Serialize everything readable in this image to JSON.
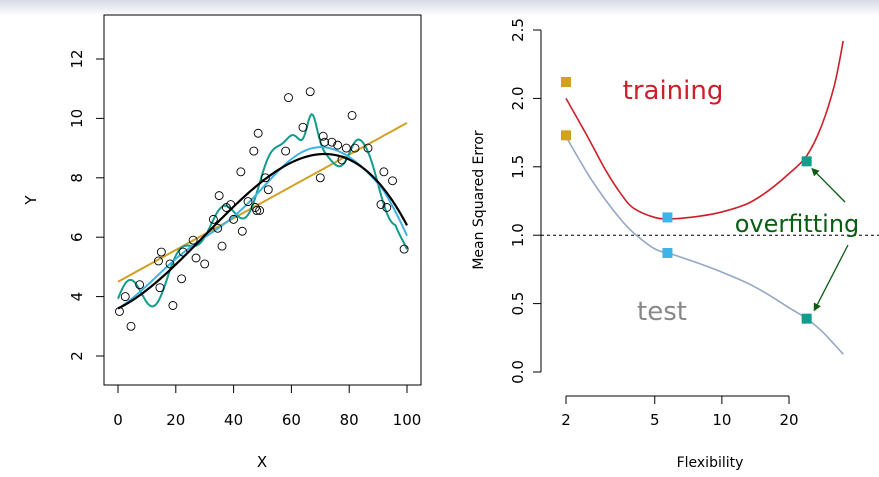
{
  "chart_data": [
    {
      "type": "scatter",
      "title": "",
      "xlabel": "X",
      "ylabel": "Y",
      "xlim": [
        0,
        100
      ],
      "ylim": [
        1.5,
        13.5
      ],
      "x_ticks": [
        0,
        20,
        40,
        60,
        80,
        100
      ],
      "y_ticks": [
        2,
        4,
        6,
        8,
        10,
        12
      ],
      "points": [
        [
          0.5,
          3.5
        ],
        [
          2.5,
          4.0
        ],
        [
          4.5,
          3.0
        ],
        [
          7.5,
          4.4
        ],
        [
          14,
          5.2
        ],
        [
          14.5,
          4.3
        ],
        [
          15,
          5.5
        ],
        [
          18,
          5.1
        ],
        [
          19,
          3.7
        ],
        [
          22,
          4.6
        ],
        [
          22.5,
          5.5
        ],
        [
          26,
          5.9
        ],
        [
          27,
          5.3
        ],
        [
          30,
          5.1
        ],
        [
          33,
          6.6
        ],
        [
          34.5,
          6.3
        ],
        [
          35,
          7.4
        ],
        [
          36,
          5.7
        ],
        [
          37.5,
          7.0
        ],
        [
          39,
          7.1
        ],
        [
          40,
          6.6
        ],
        [
          42.5,
          8.2
        ],
        [
          43,
          6.2
        ],
        [
          45,
          7.2
        ],
        [
          47,
          8.9
        ],
        [
          47.5,
          7.0
        ],
        [
          48,
          6.9
        ],
        [
          48.5,
          9.5
        ],
        [
          49,
          6.9
        ],
        [
          51,
          8.0
        ],
        [
          52,
          7.6
        ],
        [
          58,
          8.9
        ],
        [
          59,
          10.7
        ],
        [
          64,
          9.7
        ],
        [
          66.5,
          10.9
        ],
        [
          70,
          8.0
        ],
        [
          71,
          9.4
        ],
        [
          71.5,
          9.2
        ],
        [
          74,
          9.2
        ],
        [
          76,
          9.1
        ],
        [
          77.5,
          8.6
        ],
        [
          79,
          9.0
        ],
        [
          81,
          10.1
        ],
        [
          82,
          9.0
        ],
        [
          86.5,
          9.0
        ],
        [
          91,
          7.1
        ],
        [
          92,
          8.2
        ],
        [
          93,
          7.0
        ],
        [
          95,
          7.9
        ],
        [
          99,
          5.6
        ]
      ],
      "colors": {
        "truth": "#000000",
        "linear": "#D4A022",
        "smooth": "#3DB4E8",
        "wiggly": "#119C8C",
        "points": "#000000"
      }
    },
    {
      "type": "line",
      "title": "",
      "xlabel": "Flexibility",
      "ylabel": "Mean Squared Error",
      "x_scale": "log",
      "x_ticks": [
        2,
        5,
        10,
        20
      ],
      "y_ticks": [
        0.0,
        0.5,
        1.0,
        1.5,
        2.0,
        2.5
      ],
      "ylim": [
        0,
        2.55
      ],
      "reference_line": 1.0,
      "series": [
        {
          "name": "training",
          "color": "#CC1F2A",
          "x": [
            2,
            2.5,
            3,
            3.5,
            4,
            5,
            6,
            8,
            10,
            13,
            16,
            20,
            24,
            28,
            32,
            35
          ],
          "values": [
            2.0,
            1.72,
            1.48,
            1.31,
            1.2,
            1.13,
            1.12,
            1.14,
            1.17,
            1.23,
            1.32,
            1.45,
            1.58,
            1.8,
            2.1,
            2.42
          ]
        },
        {
          "name": "test",
          "color": "#94A8C4",
          "x": [
            2,
            2.5,
            3,
            3.5,
            4,
            5,
            6,
            8,
            10,
            13,
            16,
            20,
            24,
            28,
            32,
            35
          ],
          "values": [
            1.72,
            1.45,
            1.26,
            1.12,
            1.02,
            0.9,
            0.86,
            0.79,
            0.73,
            0.65,
            0.57,
            0.47,
            0.39,
            0.3,
            0.2,
            0.13
          ]
        }
      ],
      "markers": [
        {
          "x": 2,
          "y": 2.12,
          "color": "#D4A022"
        },
        {
          "x": 2,
          "y": 1.73,
          "color": "#D4A022"
        },
        {
          "x": 5.7,
          "y": 1.13,
          "color": "#3DB4E8"
        },
        {
          "x": 5.7,
          "y": 0.87,
          "color": "#3DB4E8"
        },
        {
          "x": 24,
          "y": 1.54,
          "color": "#119C8C"
        },
        {
          "x": 24,
          "y": 0.39,
          "color": "#119C8C"
        }
      ],
      "annotations": {
        "training": "training",
        "test": "test",
        "overfitting": "overfitting",
        "training_color": "#CC1F2A",
        "test_color": "#888888",
        "overfitting_color": "#0A5E12"
      }
    }
  ]
}
